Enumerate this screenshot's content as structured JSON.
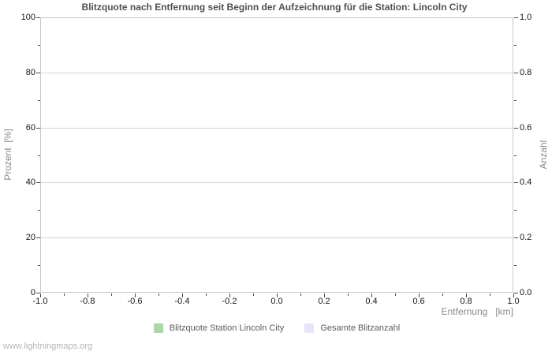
{
  "page": {
    "watermark": "www.lightningmaps.org"
  },
  "chart_data": {
    "type": "bar",
    "title": "Blitzquote nach Entfernung seit Beginn der Aufzeichnung für die Station: Lincoln City",
    "xlabel": "Entfernung   [km]",
    "ylabel_left": "Prozent  [%]",
    "ylabel_right": "Anzahl",
    "xlim": [
      -1.0,
      1.0
    ],
    "x_ticks": [
      "-1.0",
      "-0.8",
      "-0.6",
      "-0.4",
      "-0.2",
      "0.0",
      "0.2",
      "0.4",
      "0.6",
      "0.8",
      "1.0"
    ],
    "ylim_left": [
      0,
      100
    ],
    "y_ticks_left": [
      "100",
      "80",
      "60",
      "40",
      "20",
      "0"
    ],
    "ylim_right": [
      0.0,
      1.0
    ],
    "y_ticks_right": [
      "1.0",
      "0.8",
      "0.6",
      "0.4",
      "0.2",
      "0.0"
    ],
    "grid": "horizontal-major-only",
    "legend_position": "bottom-center",
    "series": [
      {
        "name": "Blitzquote Station Lincoln City",
        "color": "#abd7ab",
        "values": []
      },
      {
        "name": "Gesamte Blitzanzahl",
        "color": "#e6e6fa",
        "values": []
      }
    ]
  }
}
